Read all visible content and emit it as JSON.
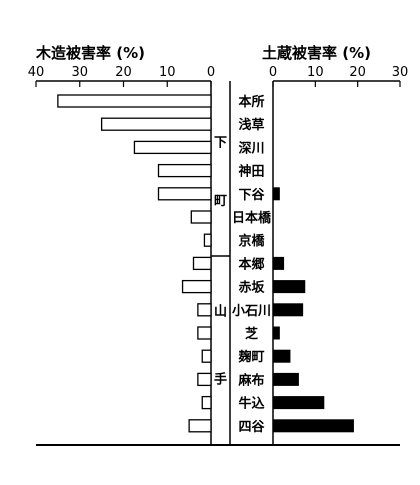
{
  "chart_data": [
    {
      "type": "bar",
      "title": "木造被害率 (%)",
      "xlim": [
        0,
        40
      ],
      "ticks": [
        40,
        30,
        20,
        10,
        0
      ],
      "orientation": "horizontal",
      "direction": "right-to-left",
      "fill": "#ffffff",
      "categories": [
        "本所",
        "浅草",
        "深川",
        "神田",
        "下谷",
        "日本橋",
        "京橋",
        "本郷",
        "赤坂",
        "小石川",
        "芝",
        "麹町",
        "麻布",
        "牛込",
        "四谷"
      ],
      "values": [
        35,
        25,
        17.5,
        12,
        12,
        4.5,
        1.5,
        4,
        6.5,
        3,
        3,
        2,
        3,
        2,
        5
      ]
    },
    {
      "type": "bar",
      "title": "土蔵被害率 (%)",
      "xlim": [
        0,
        30
      ],
      "ticks": [
        0,
        10,
        20,
        30
      ],
      "orientation": "horizontal",
      "direction": "left-to-right",
      "fill": "#000000",
      "categories": [
        "本所",
        "浅草",
        "深川",
        "神田",
        "下谷",
        "日本橋",
        "京橋",
        "本郷",
        "赤坂",
        "小石川",
        "芝",
        "麹町",
        "麻布",
        "牛込",
        "四谷"
      ],
      "values": [
        0,
        0,
        0,
        0,
        1.5,
        0,
        0,
        2.5,
        7.5,
        7,
        1.5,
        4,
        6,
        12,
        19
      ]
    }
  ],
  "groups": [
    {
      "chars": [
        "下",
        "町"
      ],
      "from": 0,
      "to": 6
    },
    {
      "chars": [
        "山",
        "手"
      ],
      "from": 7,
      "to": 14
    }
  ]
}
